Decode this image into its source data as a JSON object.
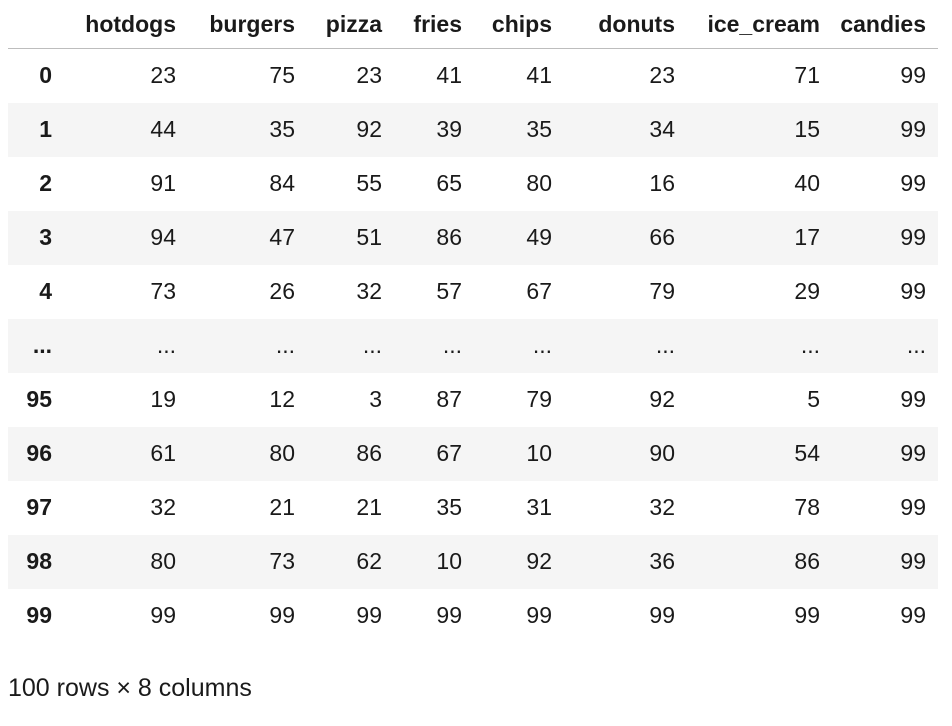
{
  "dataframe": {
    "columns": [
      "hotdogs",
      "burgers",
      "pizza",
      "fries",
      "chips",
      "donuts",
      "ice_cream",
      "candies"
    ],
    "rows": [
      {
        "index": "0",
        "values": [
          "23",
          "75",
          "23",
          "41",
          "41",
          "23",
          "71",
          "99"
        ]
      },
      {
        "index": "1",
        "values": [
          "44",
          "35",
          "92",
          "39",
          "35",
          "34",
          "15",
          "99"
        ]
      },
      {
        "index": "2",
        "values": [
          "91",
          "84",
          "55",
          "65",
          "80",
          "16",
          "40",
          "99"
        ]
      },
      {
        "index": "3",
        "values": [
          "94",
          "47",
          "51",
          "86",
          "49",
          "66",
          "17",
          "99"
        ]
      },
      {
        "index": "4",
        "values": [
          "73",
          "26",
          "32",
          "57",
          "67",
          "79",
          "29",
          "99"
        ]
      },
      {
        "index": "...",
        "values": [
          "...",
          "...",
          "...",
          "...",
          "...",
          "...",
          "...",
          "..."
        ]
      },
      {
        "index": "95",
        "values": [
          "19",
          "12",
          "3",
          "87",
          "79",
          "92",
          "5",
          "99"
        ]
      },
      {
        "index": "96",
        "values": [
          "61",
          "80",
          "86",
          "67",
          "10",
          "90",
          "54",
          "99"
        ]
      },
      {
        "index": "97",
        "values": [
          "32",
          "21",
          "21",
          "35",
          "31",
          "32",
          "78",
          "99"
        ]
      },
      {
        "index": "98",
        "values": [
          "80",
          "73",
          "62",
          "10",
          "92",
          "36",
          "86",
          "99"
        ]
      },
      {
        "index": "99",
        "values": [
          "99",
          "99",
          "99",
          "99",
          "99",
          "99",
          "99",
          "99"
        ]
      }
    ],
    "shape_text": "100 rows × 8 columns"
  },
  "colors": {
    "stripe": "#f5f5f5",
    "text": "#1a1a1a",
    "header_rule": "#bdbdbd"
  }
}
